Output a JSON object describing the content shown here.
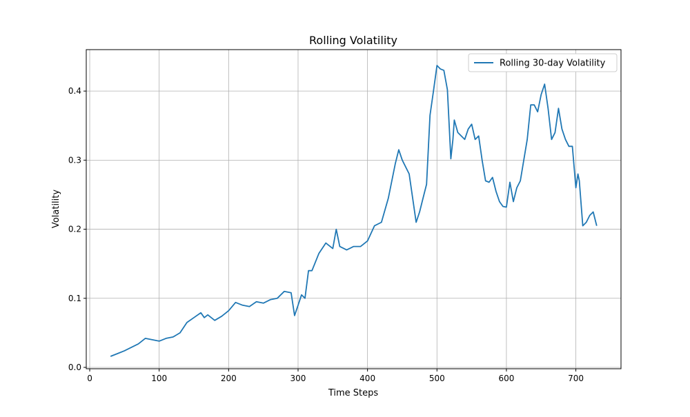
{
  "chart_data": {
    "type": "line",
    "title": "Rolling Volatility",
    "xlabel": "Time Steps",
    "ylabel": "Volatility",
    "xlim": [
      -5,
      765
    ],
    "ylim": [
      -0.002,
      0.46
    ],
    "xticks": [
      0,
      100,
      200,
      300,
      400,
      500,
      600,
      700
    ],
    "yticks": [
      0.0,
      0.1,
      0.2,
      0.3,
      0.4
    ],
    "xtick_labels": [
      "0",
      "100",
      "200",
      "300",
      "400",
      "500",
      "600",
      "700"
    ],
    "ytick_labels": [
      "0.0",
      "0.1",
      "0.2",
      "0.3",
      "0.4"
    ],
    "grid": true,
    "legend_position": "top-right",
    "series": [
      {
        "name": "Rolling 30-day Volatility",
        "color": "#1f77b4",
        "x": [
          30,
          40,
          50,
          60,
          70,
          80,
          90,
          100,
          110,
          120,
          130,
          140,
          150,
          160,
          165,
          170,
          180,
          190,
          200,
          210,
          220,
          230,
          240,
          250,
          260,
          270,
          280,
          290,
          295,
          300,
          305,
          310,
          315,
          320,
          330,
          340,
          350,
          355,
          360,
          370,
          380,
          390,
          400,
          410,
          420,
          430,
          440,
          445,
          450,
          460,
          470,
          475,
          480,
          485,
          490,
          495,
          500,
          505,
          510,
          515,
          520,
          523,
          525,
          530,
          540,
          545,
          550,
          555,
          560,
          565,
          570,
          575,
          580,
          585,
          590,
          595,
          600,
          605,
          610,
          615,
          620,
          625,
          630,
          635,
          640,
          645,
          650,
          655,
          660,
          665,
          670,
          675,
          680,
          685,
          690,
          695,
          700,
          703,
          705,
          710,
          715,
          720,
          725,
          730
        ],
        "y": [
          0.016,
          0.02,
          0.024,
          0.029,
          0.034,
          0.042,
          0.04,
          0.038,
          0.042,
          0.044,
          0.05,
          0.065,
          0.072,
          0.079,
          0.072,
          0.076,
          0.068,
          0.074,
          0.082,
          0.094,
          0.09,
          0.088,
          0.095,
          0.093,
          0.098,
          0.1,
          0.11,
          0.108,
          0.075,
          0.09,
          0.105,
          0.1,
          0.14,
          0.14,
          0.165,
          0.18,
          0.172,
          0.2,
          0.175,
          0.17,
          0.175,
          0.175,
          0.183,
          0.205,
          0.21,
          0.245,
          0.295,
          0.315,
          0.3,
          0.28,
          0.21,
          0.225,
          0.245,
          0.265,
          0.365,
          0.4,
          0.437,
          0.432,
          0.43,
          0.402,
          0.302,
          0.33,
          0.358,
          0.34,
          0.33,
          0.345,
          0.352,
          0.33,
          0.335,
          0.3,
          0.27,
          0.268,
          0.275,
          0.255,
          0.24,
          0.233,
          0.232,
          0.268,
          0.24,
          0.26,
          0.27,
          0.3,
          0.33,
          0.38,
          0.38,
          0.37,
          0.395,
          0.41,
          0.375,
          0.33,
          0.34,
          0.375,
          0.345,
          0.33,
          0.32,
          0.32,
          0.26,
          0.28,
          0.27,
          0.205,
          0.21,
          0.22,
          0.225,
          0.205
        ]
      }
    ]
  }
}
